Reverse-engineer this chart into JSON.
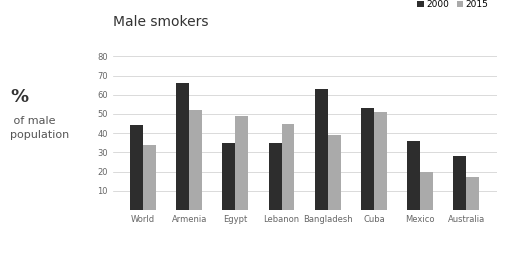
{
  "title": "Male smokers",
  "ylabel_pct": "%",
  "ylabel_rest": " of male\npopulation",
  "categories": [
    "World",
    "Armenia",
    "Egypt",
    "Lebanon",
    "Bangladesh",
    "Cuba",
    "Mexico",
    "Australia"
  ],
  "values_2000": [
    44,
    66,
    35,
    35,
    63,
    53,
    36,
    28
  ],
  "values_2015": [
    34,
    52,
    49,
    45,
    39,
    51,
    20,
    17
  ],
  "color_2000": "#2d2d2d",
  "color_2015": "#aaaaaa",
  "legend_labels": [
    "2000",
    "2015"
  ],
  "ylim": [
    0,
    80
  ],
  "yticks": [
    0,
    10,
    20,
    30,
    40,
    50,
    60,
    70,
    80
  ],
  "background_color": "#ffffff",
  "bar_width": 0.28,
  "title_fontsize": 10,
  "ylabel_fontsize": 8,
  "tick_fontsize": 6,
  "legend_fontsize": 6.5
}
